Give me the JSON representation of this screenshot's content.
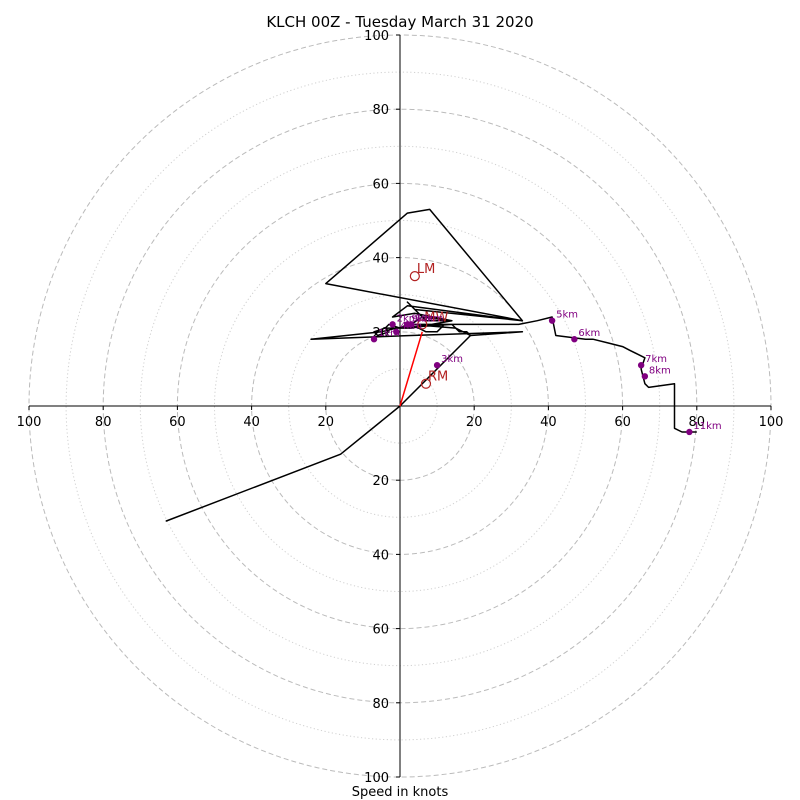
{
  "chart_data": {
    "type": "hodograph",
    "title": "KLCH 00Z - Tuesday March 31 2020",
    "xlabel": "Speed in knots",
    "xlim": [
      -100,
      100
    ],
    "ylim": [
      -100,
      100
    ],
    "ring_ticks": [
      20,
      40,
      60,
      80,
      100
    ],
    "tick_labels": {
      "x_left": [
        "100",
        "80",
        "60",
        "40",
        "20"
      ],
      "x_right": [
        "20",
        "40",
        "60",
        "80",
        "100"
      ],
      "y_top": [
        "20",
        "40",
        "60",
        "80",
        "100"
      ],
      "y_bottom": [
        "20",
        "40",
        "60",
        "80",
        "100"
      ]
    },
    "grid": true,
    "colors": {
      "trace": "#000000",
      "storm_vector": "#ff0000",
      "height_marker": "#800080",
      "motion_marker": "#b22222",
      "grid": "#bbbbbb"
    },
    "trace": {
      "u": [
        0,
        -16,
        -63,
        -16,
        0,
        19,
        33,
        3,
        -24,
        -5,
        -1,
        14,
        16,
        18,
        19,
        15,
        3,
        6,
        14,
        7,
        5,
        4,
        3,
        2,
        4,
        33,
        -20,
        2,
        8,
        33,
        2,
        -2,
        4,
        14,
        3,
        -3,
        -4,
        -7,
        -6,
        -3,
        -4,
        -3,
        0,
        2,
        5,
        7,
        10,
        12,
        3,
        32,
        37,
        41,
        42,
        50,
        52,
        56,
        60,
        62,
        64,
        66,
        65,
        66,
        67,
        74,
        74,
        76,
        80
      ],
      "v": [
        0,
        -13,
        -31,
        -13,
        0,
        19,
        20,
        19,
        18,
        20,
        21,
        22,
        20,
        20,
        19,
        21,
        22,
        24,
        23,
        23,
        25,
        26,
        27,
        28,
        26,
        23,
        33,
        52,
        53,
        23,
        27,
        24,
        25,
        23,
        21,
        21,
        21,
        20,
        19,
        20,
        21,
        22,
        21,
        22,
        21,
        20,
        20,
        22,
        22,
        22,
        23,
        24,
        19,
        18,
        18,
        17,
        16,
        15,
        14,
        13,
        10,
        6,
        5,
        6,
        -6,
        -7,
        -7
      ]
    },
    "height_markers": [
      {
        "label": "1km",
        "u": -7,
        "v": 18
      },
      {
        "label": "2km",
        "u": -2,
        "v": 22
      },
      {
        "label": "3km",
        "u": 10,
        "v": 11
      },
      {
        "label": "4km",
        "u": -1,
        "v": 20
      },
      {
        "label": "5km",
        "u": 41,
        "v": 23
      },
      {
        "label": "6km",
        "u": 47,
        "v": 18
      },
      {
        "label": "7km",
        "u": 65,
        "v": 11
      },
      {
        "label": "8km",
        "u": 66,
        "v": 8
      },
      {
        "label": "9km",
        "u": 2,
        "v": 22
      },
      {
        "label": "10km",
        "u": 3,
        "v": 22
      },
      {
        "label": "11km",
        "u": 78,
        "v": -7
      }
    ],
    "storm_motions": [
      {
        "label": "LM",
        "u": 4,
        "v": 35
      },
      {
        "label": "RM",
        "u": 7,
        "v": 6
      },
      {
        "label": "MW",
        "u": 6,
        "v": 22
      }
    ],
    "storm_vector": {
      "u": 6,
      "v": 20
    }
  }
}
